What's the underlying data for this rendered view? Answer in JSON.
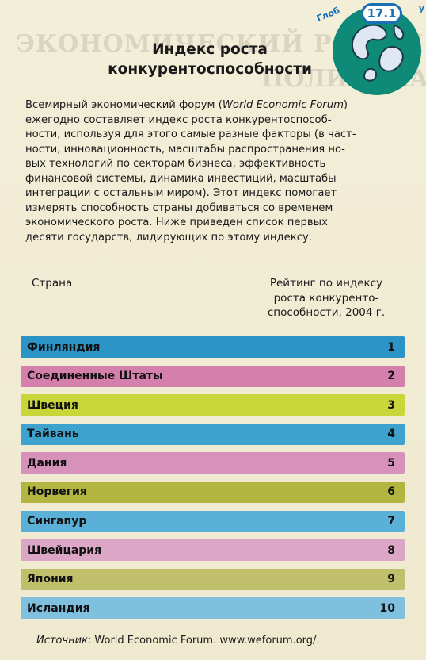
{
  "corner": {
    "label_left": "Глоб",
    "label_right": "у"
  },
  "badge": {
    "number": "17.1"
  },
  "title": {
    "line1": "Индекс роста",
    "line2": "конкурентоспособности"
  },
  "intro": {
    "lines": [
      "Всемирный экономический форум (",
      "World Economic Forum",
      ")",
      "ежегодно составляет индекс роста конкурентоспособ-",
      "ности, используя для этого самые разные факторы (в част-",
      "ности, инновационность, масштабы распространения но-",
      "вых технологий по секторам бизнеса, эффективность",
      "финансовой системы, динамика инвестиций, масштабы",
      "интеграции с остальным миром). Этот индекс помогает",
      "измерять способность страны добиваться со временем",
      "экономического роста. Ниже приведен список первых",
      "десяти государств, лидирующих по этому индексу."
    ]
  },
  "table": {
    "col_country": "Страна",
    "col_rating_line1": "Рейтинг по индексу",
    "col_rating_line2": "роста конкуренто-",
    "col_rating_line3": "способности, 2004 г.",
    "rows": [
      {
        "country": "Финляндия",
        "rank": "1",
        "color": "#2c93c7"
      },
      {
        "country": "Соединенные Штаты",
        "rank": "2",
        "color": "#d580ac"
      },
      {
        "country": "Швеция",
        "rank": "3",
        "color": "#c9d63a"
      },
      {
        "country": "Тайвань",
        "rank": "4",
        "color": "#3ea2cf"
      },
      {
        "country": "Дания",
        "rank": "5",
        "color": "#d792bb"
      },
      {
        "country": "Норвегия",
        "rank": "6",
        "color": "#b2b640"
      },
      {
        "country": "Сингапур",
        "rank": "7",
        "color": "#5ab0d6"
      },
      {
        "country": "Швейцария",
        "rank": "8",
        "color": "#dca6c6"
      },
      {
        "country": "Япония",
        "rank": "9",
        "color": "#bfbf6c"
      },
      {
        "country": "Исландия",
        "rank": "10",
        "color": "#7ec0de"
      }
    ]
  },
  "source": {
    "label": "Источник",
    "text": ": World Economic Forum. www.weforum.org/."
  },
  "ghost": {
    "line1": "ЭКОНОМИЧЕСКИЙ РОСТ И МОЖЕТ",
    "line2": "ПОЛИТИКА?"
  }
}
